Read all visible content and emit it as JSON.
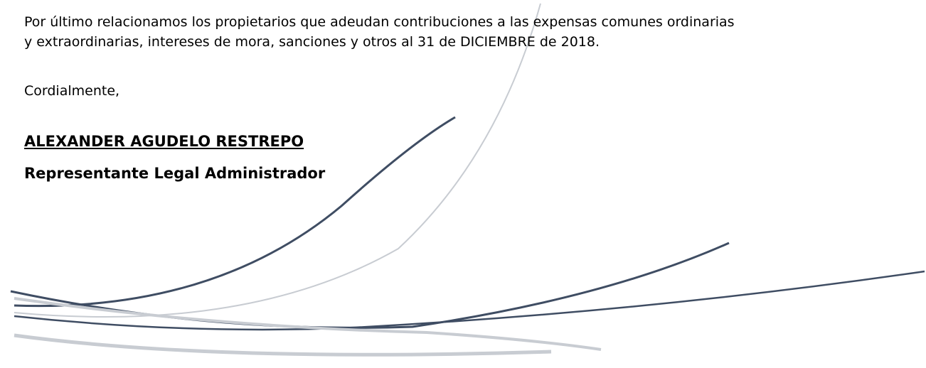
{
  "paragraph": [
    "Por último relacionamos los propietarios que adeudan contribuciones a las expensas comunes ordinarias",
    "y extraordinarias, intereses de mora, sanciones y otros al 31 de DICIEMBRE de 2018."
  ],
  "closing": "Cordialmente,",
  "signature": {
    "name": "ALEXANDER AGUDELO RESTREPO",
    "role": "Representante Legal Administrador"
  }
}
